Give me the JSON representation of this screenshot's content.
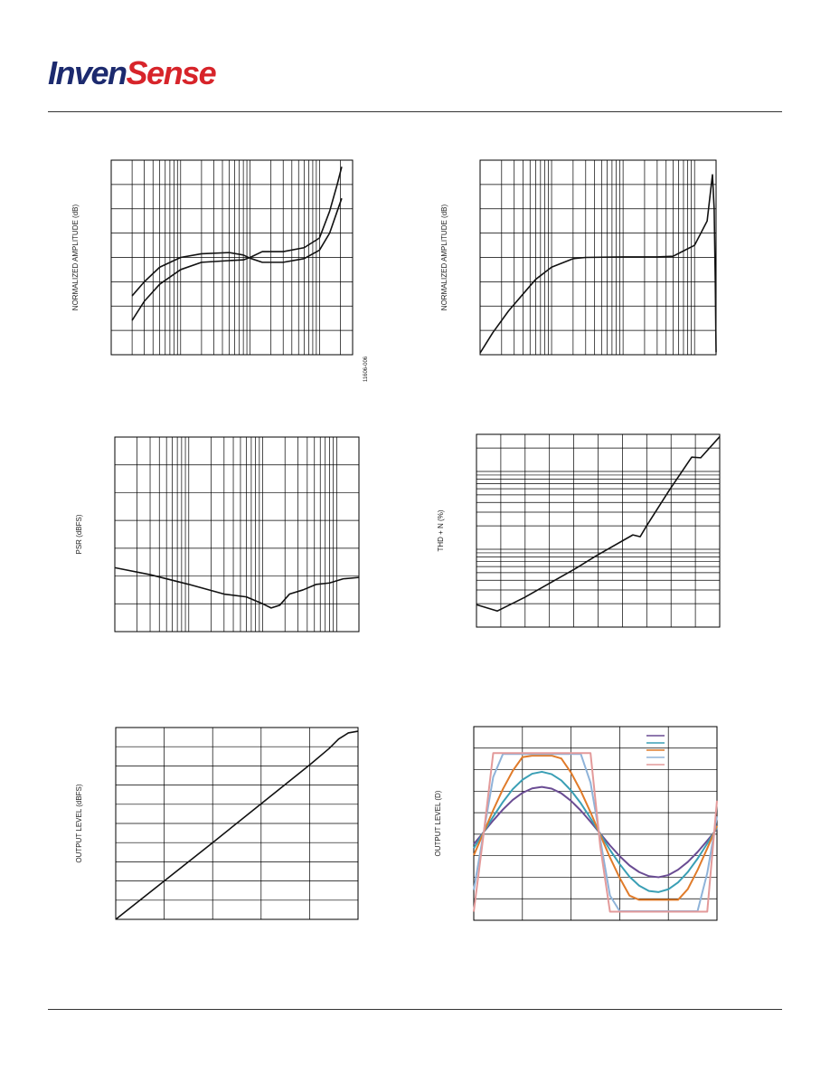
{
  "header": {
    "logo_left": "Inven",
    "logo_right": "Sense"
  },
  "chart_data": [
    {
      "type": "line",
      "ylabel": "NORMALIZED AMPLITUDE (dB)",
      "figure_id": "11606-006",
      "xscale": "log",
      "xlim": [
        10,
        30000
      ],
      "ylim": [
        0,
        8
      ],
      "xgrid": [
        20,
        30,
        40,
        50,
        60,
        70,
        80,
        90,
        100,
        200,
        300,
        400,
        500,
        600,
        700,
        800,
        900,
        1000,
        2000,
        3000,
        4000,
        5000,
        6000,
        7000,
        8000,
        9000,
        10000,
        20000
      ],
      "ygrid": [
        1,
        2,
        3,
        4,
        5,
        6,
        7
      ],
      "x": [
        20,
        30,
        50,
        100,
        200,
        500,
        800,
        1000,
        1500,
        3000,
        6000,
        10000,
        14000,
        18000,
        20900
      ],
      "series": [
        {
          "color": "#111111",
          "values": [
            2.42,
            3.0,
            3.6,
            4.0,
            4.15,
            4.2,
            4.1,
            3.97,
            3.8,
            3.8,
            3.95,
            4.3,
            5.0,
            5.9,
            6.43
          ]
        },
        {
          "color": "#111111",
          "values": [
            1.41,
            2.2,
            2.9,
            3.5,
            3.8,
            3.87,
            3.9,
            4.0,
            4.24,
            4.24,
            4.4,
            4.8,
            5.9,
            7.0,
            7.73
          ]
        }
      ]
    },
    {
      "type": "line",
      "ylabel": "NORMALIZED AMPLITUDE (dB)",
      "xscale": "log",
      "xlim": [
        10,
        20000
      ],
      "ylim": [
        0,
        8
      ],
      "xgrid": [
        20,
        30,
        40,
        50,
        60,
        70,
        80,
        90,
        100,
        200,
        300,
        400,
        500,
        600,
        700,
        800,
        900,
        1000,
        2000,
        3000,
        4000,
        5000,
        6000,
        7000,
        8000,
        9000,
        10000
      ],
      "ygrid": [
        1,
        2,
        3,
        4,
        5,
        6,
        7
      ],
      "x": [
        10,
        15,
        25,
        40,
        60,
        100,
        200,
        300,
        1000,
        3000,
        5000,
        10000,
        15000,
        17800,
        18800,
        19500,
        20000
      ],
      "series": [
        {
          "color": "#111111",
          "values": [
            0.07,
            0.9,
            1.8,
            2.5,
            3.1,
            3.6,
            3.95,
            4.0,
            4.02,
            4.02,
            4.05,
            4.5,
            5.5,
            7.4,
            6.0,
            3,
            0.1
          ]
        }
      ]
    },
    {
      "type": "line",
      "ylabel": "PSR (dBFS)",
      "xscale": "log",
      "xlim": [
        10,
        20000
      ],
      "ylim": [
        0,
        7
      ],
      "xgrid": [
        20,
        30,
        40,
        50,
        60,
        70,
        80,
        90,
        100,
        200,
        300,
        400,
        500,
        600,
        700,
        800,
        900,
        1000,
        2000,
        3000,
        4000,
        5000,
        6000,
        7000,
        8000,
        9000,
        10000
      ],
      "ygrid": [
        1,
        2,
        3,
        4,
        5,
        6
      ],
      "x": [
        10,
        30,
        100,
        300,
        600,
        1000,
        1300,
        1700,
        2300,
        3500,
        5300,
        8000,
        12300,
        20000
      ],
      "series": [
        {
          "color": "#111111",
          "values": [
            2.3,
            2.05,
            1.7,
            1.35,
            1.25,
            1.0,
            0.85,
            0.95,
            1.35,
            1.5,
            1.7,
            1.75,
            1.9,
            1.95
          ]
        }
      ]
    },
    {
      "type": "line",
      "ylabel": "THD + N (%)",
      "yscale": "log",
      "xlim": [
        -100,
        0
      ],
      "ylim": [
        0.001,
        0.3
      ],
      "xgrid": [
        -90,
        -80,
        -70,
        -60,
        -50,
        -40,
        -30,
        -20,
        -10
      ],
      "ygrid": [
        0.002,
        0.003,
        0.004,
        0.005,
        0.006,
        0.007,
        0.008,
        0.009,
        0.01,
        0.02,
        0.03,
        0.04,
        0.05,
        0.06,
        0.07,
        0.08,
        0.09,
        0.1,
        0.2
      ],
      "x": [
        -100,
        -91.4,
        -80.3,
        -59.5,
        -50.6,
        -35.7,
        -32.7,
        -30.1,
        -20.8,
        -11.5,
        -7.8,
        0
      ],
      "series": [
        {
          "color": "#111111",
          "values": [
            0.00194,
            0.00161,
            0.0024,
            0.0056,
            0.0083,
            0.0153,
            0.0145,
            0.0199,
            0.057,
            0.153,
            0.15,
            0.28
          ]
        }
      ]
    },
    {
      "type": "line",
      "ylabel": "OUTPUT LEVEL (dBFS)",
      "xlim": [
        -100,
        0
      ],
      "ylim": [
        -100,
        0
      ],
      "xgrid": [
        -80,
        -60,
        -40,
        -20
      ],
      "ygrid": [
        -90,
        -80,
        -70,
        -60,
        -50,
        -40,
        -30,
        -20,
        -10
      ],
      "x": [
        -100,
        -60,
        -20,
        -12,
        -8,
        -4,
        0
      ],
      "series": [
        {
          "color": "#111111",
          "values": [
            -100,
            -60,
            -19.5,
            -11,
            -6,
            -2.8,
            -1.9
          ]
        }
      ]
    },
    {
      "type": "line",
      "ylabel": "OUTPUT LEVEL (D)",
      "legend": "upper right",
      "xlim": [
        0,
        1
      ],
      "ylim": [
        0,
        9
      ],
      "xgrid": [
        0.2,
        0.4,
        0.6,
        0.8
      ],
      "ygrid": [
        1,
        2,
        3,
        4,
        5,
        6,
        7,
        8
      ],
      "x": [
        0,
        0.04,
        0.08,
        0.12,
        0.16,
        0.2,
        0.24,
        0.28,
        0.32,
        0.36,
        0.4,
        0.44,
        0.48,
        0.52,
        0.56,
        0.6,
        0.64,
        0.68,
        0.72,
        0.76,
        0.8,
        0.84,
        0.88,
        0.92,
        0.96,
        1
      ],
      "series": [
        {
          "color": "#6a4c93",
          "values": [
            3.54,
            4.09,
            4.64,
            5.15,
            5.59,
            5.92,
            6.13,
            6.2,
            6.12,
            5.9,
            5.55,
            5.1,
            4.58,
            4.03,
            3.48,
            2.98,
            2.55,
            2.24,
            2.05,
            2.0,
            2.1,
            2.35,
            2.71,
            3.17,
            3.7,
            4.25
          ]
        },
        {
          "color": "#3a9fb5",
          "values": [
            3.35,
            4.08,
            4.82,
            5.5,
            6.09,
            6.53,
            6.81,
            6.9,
            6.79,
            6.5,
            6.03,
            5.44,
            4.74,
            4.01,
            3.27,
            2.61,
            2.03,
            1.61,
            1.36,
            1.31,
            1.44,
            1.76,
            2.24,
            2.86,
            3.57,
            4.3
          ]
        },
        {
          "color": "#e07b2a",
          "values": [
            3.02,
            4.07,
            5.12,
            6.1,
            6.94,
            7.58,
            7.65,
            7.65,
            7.65,
            7.52,
            6.86,
            6.01,
            5.02,
            3.97,
            2.92,
            1.97,
            1.15,
            0.95,
            0.95,
            0.95,
            0.95,
            0.95,
            1.45,
            2.33,
            3.34,
            4.39
          ]
        },
        {
          "color": "#8fb3d9",
          "values": [
            1.41,
            4.03,
            6.66,
            7.73,
            7.73,
            7.73,
            7.73,
            7.73,
            7.73,
            7.73,
            7.73,
            7.73,
            6.4,
            3.77,
            1.15,
            0.42,
            0.42,
            0.42,
            0.42,
            0.42,
            0.42,
            0.42,
            0.42,
            0.42,
            2.19,
            4.83
          ]
        },
        {
          "color": "#e39a9a",
          "values": [
            0.4,
            3.96,
            7.77,
            7.77,
            7.77,
            7.77,
            7.77,
            7.77,
            7.77,
            7.77,
            7.77,
            7.77,
            7.77,
            3.44,
            0.4,
            0.4,
            0.4,
            0.4,
            0.4,
            0.4,
            0.4,
            0.4,
            0.4,
            0.4,
            0.4,
            5.56
          ]
        }
      ]
    }
  ]
}
